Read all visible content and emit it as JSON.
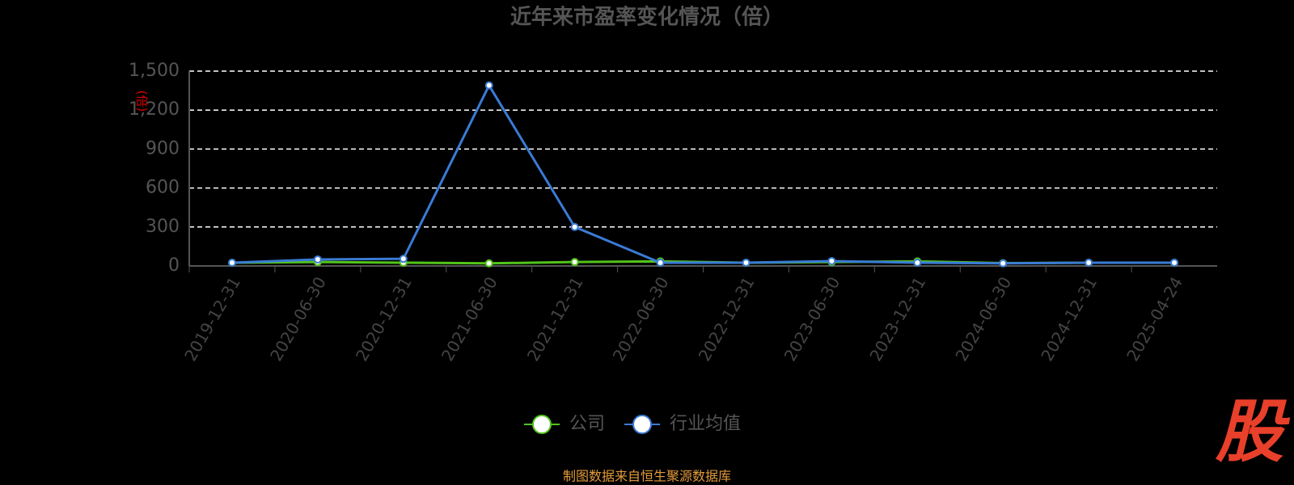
{
  "chart_data": {
    "type": "line",
    "title": "近年来市盈率变化情况（倍）",
    "y_label": "(倍)",
    "categories": [
      "2019-12-31",
      "2020-06-30",
      "2020-12-31",
      "2021-06-30",
      "2021-12-31",
      "2022-06-30",
      "2022-12-31",
      "2023-06-30",
      "2023-12-31",
      "2024-06-30",
      "2024-12-31",
      "2025-04-24"
    ],
    "series": [
      {
        "name": "公司",
        "color": "#52c41a",
        "values": [
          25,
          30,
          25,
          20,
          30,
          35,
          25,
          30,
          35,
          22,
          25,
          25
        ]
      },
      {
        "name": "行业均值",
        "color": "#3a7bd5",
        "values": [
          25,
          50,
          55,
          1390,
          300,
          25,
          25,
          37,
          25,
          20,
          25,
          25
        ]
      }
    ],
    "ylim": [
      0,
      1500
    ],
    "yticks": [
      0,
      300,
      600,
      900,
      {
        "value": 1200,
        "label": "1,200"
      },
      {
        "value": 1500,
        "label": "1,500"
      }
    ],
    "grid": true,
    "source": "制图数据来自恒生聚源数据库",
    "logo": "股"
  }
}
